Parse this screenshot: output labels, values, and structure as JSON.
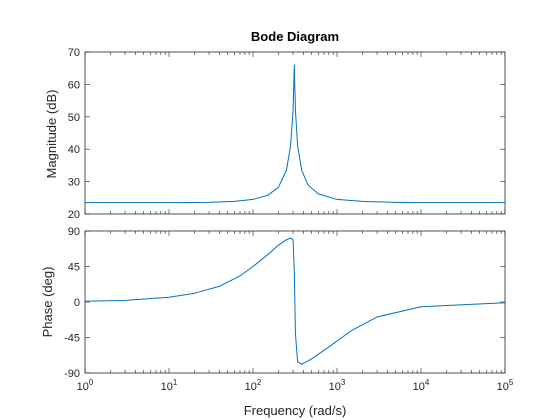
{
  "chart_data": [
    {
      "type": "line",
      "title": "Bode Diagram",
      "xlabel": "Frequency  (rad/s)",
      "ylabel": "Magnitude (dB)",
      "xscale": "log",
      "xlim": [
        1,
        100000
      ],
      "ylim": [
        20,
        70
      ],
      "yticks": [
        20,
        30,
        40,
        50,
        60,
        70
      ],
      "grid": false,
      "series": [
        {
          "color": "#0072BD",
          "x": [
            1,
            10,
            30,
            60,
            100,
            150,
            200,
            250,
            280,
            300,
            310,
            320,
            340,
            380,
            450,
            600,
            1000,
            2000,
            5000,
            10000,
            100000
          ],
          "y": [
            23.5,
            23.5,
            23.6,
            23.9,
            24.5,
            25.8,
            28.2,
            33.5,
            41.0,
            52.0,
            66.0,
            52.0,
            41.0,
            33.5,
            29.0,
            26.2,
            24.5,
            23.9,
            23.6,
            23.5,
            23.5
          ]
        }
      ]
    },
    {
      "type": "line",
      "xlabel": "Frequency  (rad/s)",
      "ylabel": "Phase (deg)",
      "xscale": "log",
      "xlim": [
        1,
        100000
      ],
      "ylim": [
        -90,
        90
      ],
      "yticks": [
        -90,
        -45,
        0,
        45,
        90
      ],
      "grid": false,
      "series": [
        {
          "color": "#0072BD",
          "x": [
            1,
            3,
            10,
            20,
            40,
            70,
            100,
            150,
            200,
            250,
            280,
            300,
            310,
            320,
            340,
            380,
            500,
            800,
            1500,
            3000,
            10000,
            100000
          ],
          "y": [
            1,
            2,
            6,
            11,
            20,
            33,
            45,
            60,
            72,
            79,
            81,
            79,
            40,
            -40,
            -76,
            -79,
            -72,
            -57,
            -36,
            -19,
            -6,
            -1
          ]
        }
      ]
    }
  ],
  "xtick_labels": [
    {
      "base": "10",
      "exp": "0"
    },
    {
      "base": "10",
      "exp": "1"
    },
    {
      "base": "10",
      "exp": "2"
    },
    {
      "base": "10",
      "exp": "3"
    },
    {
      "base": "10",
      "exp": "4"
    },
    {
      "base": "10",
      "exp": "5"
    }
  ]
}
